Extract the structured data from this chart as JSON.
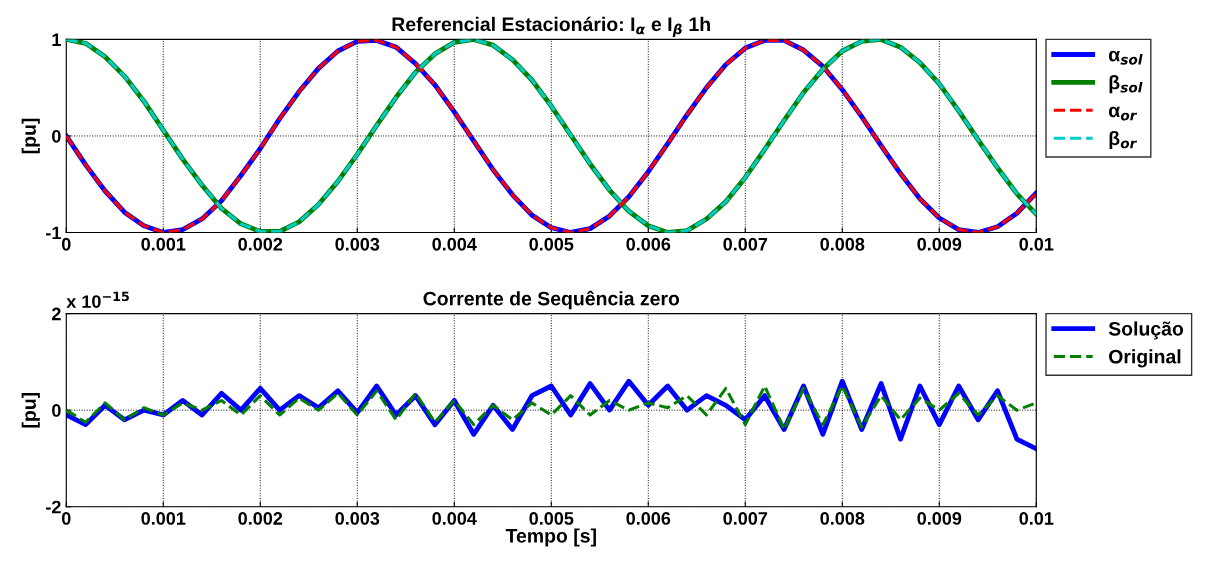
{
  "chart_data": [
    {
      "type": "line",
      "title": "Referencial Estacionário: I$_{α}$ e I$_{β}$ 1h",
      "ylabel": "[pu]",
      "x": [
        0,
        0.0002,
        0.0004,
        0.0006,
        0.0008,
        0.001,
        0.0012,
        0.0014,
        0.0016,
        0.0018,
        0.002,
        0.0022,
        0.0024,
        0.0026,
        0.0028,
        0.003,
        0.0032,
        0.0034,
        0.0036,
        0.0038,
        0.004,
        0.0042,
        0.0044,
        0.0046,
        0.0048,
        0.005,
        0.0052,
        0.0054,
        0.0056,
        0.0058,
        0.006,
        0.0062,
        0.0064,
        0.0066,
        0.0068,
        0.007,
        0.0072,
        0.0074,
        0.0076,
        0.0078,
        0.008,
        0.0082,
        0.0084,
        0.0086,
        0.0088,
        0.009,
        0.0092,
        0.0094,
        0.0096,
        0.0098,
        0.01
      ],
      "series": [
        {
          "name": "α$_{sol}$",
          "color": "#0000ff",
          "line_style": "solid",
          "values": [
            0,
            -0.3,
            -0.57,
            -0.79,
            -0.93,
            -1.0,
            -0.97,
            -0.86,
            -0.67,
            -0.41,
            -0.13,
            0.18,
            0.46,
            0.7,
            0.88,
            0.98,
            0.99,
            0.92,
            0.75,
            0.53,
            0.25,
            -0.05,
            -0.35,
            -0.61,
            -0.82,
            -0.95,
            -1.0,
            -0.96,
            -0.83,
            -0.63,
            -0.37,
            -0.08,
            0.22,
            0.5,
            0.74,
            0.91,
            0.99,
            0.99,
            0.89,
            0.72,
            0.48,
            0.2,
            -0.1,
            -0.39,
            -0.65,
            -0.85,
            -0.97,
            -1.0,
            -0.94,
            -0.8,
            -0.59
          ]
        },
        {
          "name": "β$_{sol}$",
          "color": "#008000",
          "line_style": "solid",
          "values": [
            1,
            0.96,
            0.82,
            0.62,
            0.36,
            0.06,
            -0.24,
            -0.51,
            -0.75,
            -0.91,
            -0.99,
            -0.99,
            -0.89,
            -0.71,
            -0.47,
            -0.19,
            0.11,
            0.4,
            0.66,
            0.85,
            0.97,
            1.0,
            0.94,
            0.79,
            0.58,
            0.31,
            0.01,
            -0.29,
            -0.56,
            -0.78,
            -0.93,
            -1.0,
            -0.98,
            -0.86,
            -0.68,
            -0.43,
            -0.14,
            0.16,
            0.45,
            0.69,
            0.88,
            0.98,
            1.0,
            0.92,
            0.76,
            0.54,
            0.26,
            -0.04,
            -0.33,
            -0.6,
            -0.81
          ]
        },
        {
          "name": "α$_{or}$",
          "color": "#ff0000",
          "line_style": "dashed",
          "values": [
            0,
            -0.3,
            -0.57,
            -0.79,
            -0.93,
            -1.0,
            -0.97,
            -0.86,
            -0.67,
            -0.41,
            -0.13,
            0.18,
            0.46,
            0.7,
            0.88,
            0.98,
            0.99,
            0.92,
            0.75,
            0.53,
            0.25,
            -0.05,
            -0.35,
            -0.61,
            -0.82,
            -0.95,
            -1.0,
            -0.96,
            -0.83,
            -0.63,
            -0.37,
            -0.08,
            0.22,
            0.5,
            0.74,
            0.91,
            0.99,
            0.99,
            0.89,
            0.72,
            0.48,
            0.2,
            -0.1,
            -0.39,
            -0.65,
            -0.85,
            -0.97,
            -1.0,
            -0.94,
            -0.8,
            -0.59
          ]
        },
        {
          "name": "β$_{or}$",
          "color": "#00cccc",
          "line_style": "dashed",
          "values": [
            1,
            0.96,
            0.82,
            0.62,
            0.36,
            0.06,
            -0.24,
            -0.51,
            -0.75,
            -0.91,
            -0.99,
            -0.99,
            -0.89,
            -0.71,
            -0.47,
            -0.19,
            0.11,
            0.4,
            0.66,
            0.85,
            0.97,
            1.0,
            0.94,
            0.79,
            0.58,
            0.31,
            0.01,
            -0.29,
            -0.56,
            -0.78,
            -0.93,
            -1.0,
            -0.98,
            -0.86,
            -0.68,
            -0.43,
            -0.14,
            0.16,
            0.45,
            0.69,
            0.88,
            0.98,
            1.0,
            0.92,
            0.76,
            0.54,
            0.26,
            -0.04,
            -0.33,
            -0.6,
            -0.81
          ]
        }
      ],
      "xlim": [
        0,
        0.01
      ],
      "xticks": [
        0,
        0.001,
        0.002,
        0.003,
        0.004,
        0.005,
        0.006,
        0.007,
        0.008,
        0.009,
        0.01
      ],
      "ylim": [
        -1,
        1
      ],
      "yticks": [
        -1,
        0,
        1
      ],
      "grid": true,
      "legend": "right"
    },
    {
      "type": "line",
      "title": "Corrente de Sequência zero",
      "xlabel": "Tempo [s]",
      "ylabel": "[pu]",
      "annotations": [
        "x 10$^{−15}$"
      ],
      "x": [
        0,
        0.0002,
        0.0004,
        0.0006,
        0.0008,
        0.001,
        0.0012,
        0.0014,
        0.0016,
        0.0018,
        0.002,
        0.0022,
        0.0024,
        0.0026,
        0.0028,
        0.003,
        0.0032,
        0.0034,
        0.0036,
        0.0038,
        0.004,
        0.0042,
        0.0044,
        0.0046,
        0.0048,
        0.005,
        0.0052,
        0.0054,
        0.0056,
        0.0058,
        0.006,
        0.0062,
        0.0064,
        0.0066,
        0.0068,
        0.007,
        0.0072,
        0.0074,
        0.0076,
        0.0078,
        0.008,
        0.0082,
        0.0084,
        0.0086,
        0.0088,
        0.009,
        0.0092,
        0.0094,
        0.0096,
        0.0098,
        0.01
      ],
      "series": [
        {
          "name": "Solução",
          "color": "#0000ff",
          "line_style": "solid",
          "values": [
            -0.1,
            -0.3,
            0.1,
            -0.2,
            0.0,
            -0.1,
            0.2,
            -0.1,
            0.35,
            0.0,
            0.45,
            0.0,
            0.3,
            0.05,
            0.4,
            -0.05,
            0.5,
            -0.1,
            0.3,
            -0.3,
            0.2,
            -0.5,
            0.1,
            -0.4,
            0.3,
            0.5,
            -0.1,
            0.55,
            0.0,
            0.6,
            0.1,
            0.5,
            0.0,
            0.3,
            0.1,
            -0.2,
            0.3,
            -0.4,
            0.5,
            -0.5,
            0.6,
            -0.4,
            0.55,
            -0.6,
            0.5,
            -0.3,
            0.5,
            -0.2,
            0.4,
            -0.6,
            -0.8
          ]
        },
        {
          "name": "Original",
          "color": "#008000",
          "line_style": "dashed",
          "values": [
            0.0,
            -0.25,
            0.15,
            -0.2,
            0.05,
            -0.1,
            0.15,
            0.0,
            0.2,
            -0.1,
            0.3,
            -0.1,
            0.25,
            0.0,
            0.35,
            -0.1,
            0.4,
            -0.2,
            0.35,
            -0.25,
            0.2,
            -0.3,
            0.1,
            -0.2,
            0.15,
            -0.1,
            0.3,
            -0.1,
            0.2,
            0.0,
            0.15,
            0.05,
            0.3,
            -0.1,
            0.45,
            -0.3,
            0.5,
            -0.4,
            0.45,
            -0.3,
            0.5,
            -0.35,
            0.3,
            -0.2,
            0.25,
            0.0,
            0.35,
            -0.1,
            0.3,
            0.0,
            0.15
          ]
        }
      ],
      "xlim": [
        0,
        0.01
      ],
      "xticks": [
        0,
        0.001,
        0.002,
        0.003,
        0.004,
        0.005,
        0.006,
        0.007,
        0.008,
        0.009,
        0.01
      ],
      "ylim": [
        -2,
        2
      ],
      "yticks": [
        -2,
        0,
        2
      ],
      "grid": true,
      "legend": "right"
    }
  ]
}
